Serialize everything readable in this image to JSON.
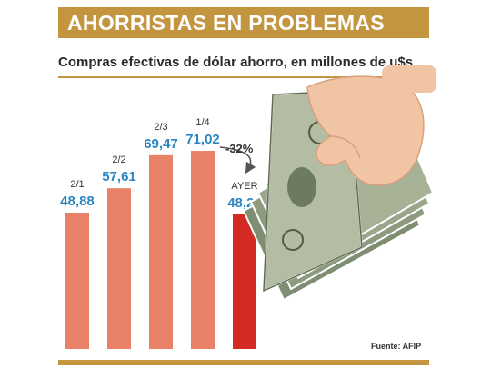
{
  "header": {
    "title": "AHORRISTAS EN PROBLEMAS"
  },
  "subtitle": "Compras efectivas de dólar ahorro, en millones de u$s",
  "source": "Fuente: AFIP",
  "colors": {
    "title_bg": "#c3953f",
    "bar": "#e98068",
    "bar_highlight": "#d42a24",
    "value_text": "#2e86c1",
    "date_text": "#333333"
  },
  "decoration": {
    "icon": "hand-holding-dollar-bills"
  },
  "chart_data": {
    "type": "bar",
    "title": "Compras efectivas de dólar ahorro, en millones de u$s",
    "xlabel": "",
    "ylabel": "",
    "categories": [
      "2/1",
      "2/2",
      "2/3",
      "1/4",
      "AYER"
    ],
    "values": [
      48.88,
      57.61,
      69.47,
      71.02,
      48.25
    ],
    "value_labels": [
      "48,88",
      "57,61",
      "69,47",
      "71,02",
      "48,25"
    ],
    "highlight_index": 4,
    "ylim": [
      0,
      75
    ],
    "grid": false,
    "legend": "none",
    "annotation": {
      "text": "-32%",
      "from_index": 3,
      "to_index": 4
    }
  }
}
